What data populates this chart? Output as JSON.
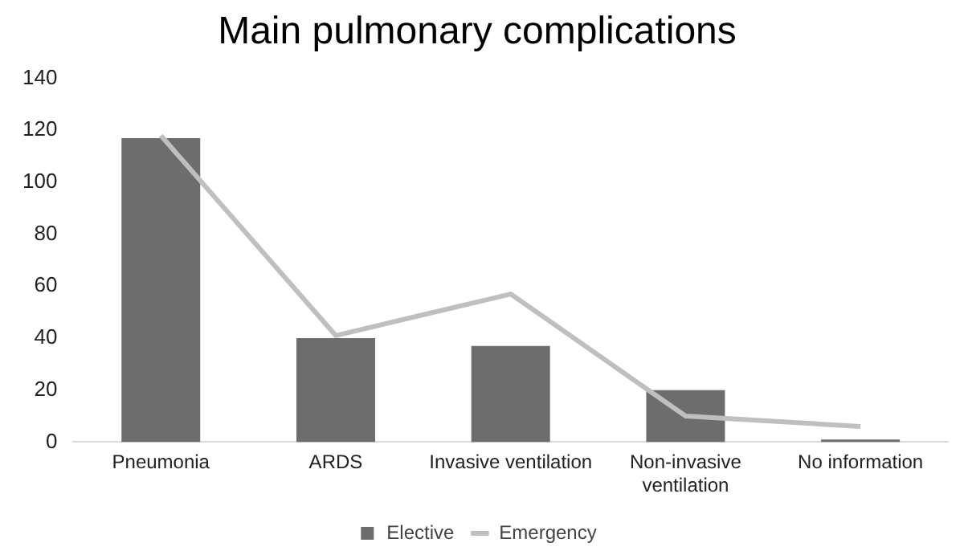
{
  "chart_data": {
    "type": "bar",
    "title": "Main pulmonary complications",
    "categories": [
      "Pneumonia",
      "ARDS",
      "Invasive ventilation",
      "Non-invasive ventilation",
      "No information"
    ],
    "series": [
      {
        "name": "Elective",
        "color": "#6d6d6d",
        "values": [
          117,
          40,
          37,
          20,
          1
        ]
      },
      {
        "name": "Emergency",
        "type": "line",
        "color": "#bfbfbf",
        "values": [
          118,
          41,
          57,
          10,
          6
        ]
      }
    ],
    "ylim": [
      0,
      140
    ],
    "yticks": [
      0,
      20,
      40,
      60,
      80,
      100,
      120,
      140
    ],
    "grid": false,
    "legend": "bottom",
    "marker": "none"
  }
}
